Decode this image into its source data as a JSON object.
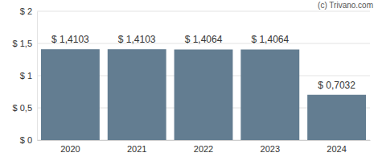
{
  "chart_data": {
    "type": "bar",
    "annotation": "(c) Trivano.com",
    "categories": [
      "2020",
      "2021",
      "2022",
      "2023",
      "2024"
    ],
    "values": [
      1.4103,
      1.4103,
      1.4064,
      1.4064,
      0.7032
    ],
    "value_labels": [
      "$ 1,4103",
      "$ 1,4103",
      "$ 1,4064",
      "$ 1,4064",
      "$ 0,7032"
    ],
    "data_labels": true,
    "color": "#637d91",
    "ylim": [
      0,
      2
    ],
    "yticks": [
      {
        "value": 0,
        "label": "$ 0"
      },
      {
        "value": 0.5,
        "label": "$ 0,5"
      },
      {
        "value": 1,
        "label": "$ 1"
      },
      {
        "value": 1.5,
        "label": "$ 1,5"
      },
      {
        "value": 2,
        "label": "$ 2"
      }
    ],
    "grid": true
  }
}
